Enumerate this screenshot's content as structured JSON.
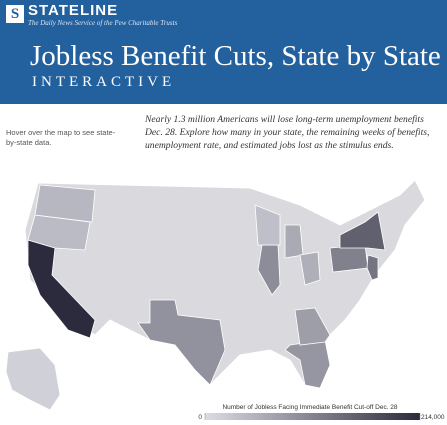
{
  "header": {
    "brand": "STATELINE",
    "tagline": "The Daily News Service of the Pew Charitable Trusts",
    "title": "Jobless Benefit Cuts, State by State",
    "subtitle": "INTERACTIVE"
  },
  "intro": "Nearly 1.3 million Americans will lose long-term unemployment benefits Dec. 28. Explore how many in your state, the remaining weeks of benefits, unemployment rate, and estimated jobs lost as the stimulus ends.",
  "hint": "Hover over the map to see state-by-state data.",
  "map": {
    "values": [
      214000,
      40000,
      45000,
      90000,
      85000,
      75000,
      95000,
      60000,
      55000,
      110000,
      150000,
      125000,
      35000,
      15000
    ],
    "legend": {
      "title": "Number of Jobless Facing Immediate Benefit Cut-off Dec. 28",
      "ticks": [
        0,
        {
          "value": 214000,
          "label": "214,000"
        }
      ],
      "colors": [
        "#dcdce4",
        "#2b2b3d"
      ]
    }
  }
}
